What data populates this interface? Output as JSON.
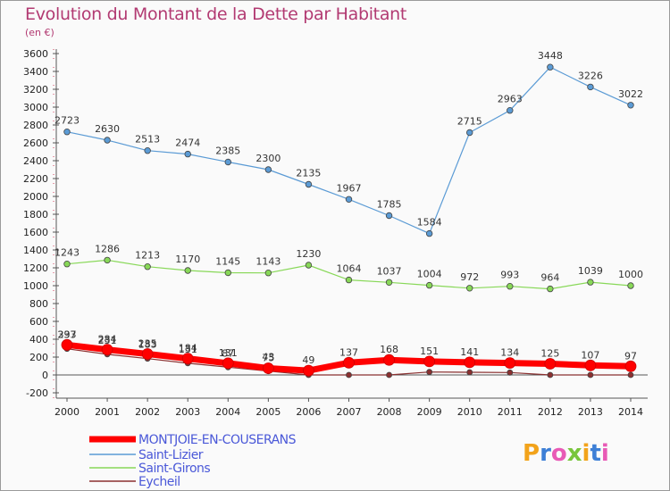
{
  "title": "Evolution du Montant de la Dette par Habitant",
  "unit": "(en €)",
  "logo": "Proxiti",
  "chart_data": {
    "type": "line",
    "title": "Evolution du Montant de la Dette par Habitant",
    "subtitle": "(en €)",
    "x": [
      "2000",
      "2001",
      "2002",
      "2003",
      "2004",
      "2005",
      "2006",
      "2007",
      "2008",
      "2009",
      "2010",
      "2011",
      "2012",
      "2013",
      "2014"
    ],
    "y_ticks": [
      "-200",
      "0",
      "200",
      "400",
      "600",
      "800",
      "1000",
      "1200",
      "1400",
      "1600",
      "1800",
      "2000",
      "2200",
      "2400",
      "2600",
      "2800",
      "3000",
      "3200",
      "3400",
      "3600"
    ],
    "ylim": [
      -200,
      3600
    ],
    "grid": false,
    "legend_position": "bottom-left",
    "series": [
      {
        "name": "MONTJOIE-EN-COUSERANS",
        "color": "#ff0000",
        "values": [
          337,
          284,
          235,
          184,
          131,
          75,
          49,
          137,
          168,
          151,
          141,
          134,
          125,
          107,
          97
        ],
        "labels": [
          "337",
          "284",
          "235",
          "184",
          "131",
          "75",
          "49",
          "137",
          "168",
          "151",
          "141",
          "134",
          "125",
          "107",
          "97"
        ]
      },
      {
        "name": "Saint-Lizier",
        "color": "#5b9bd5",
        "values": [
          2723,
          2630,
          2513,
          2474,
          2385,
          2300,
          2135,
          1967,
          1785,
          1584,
          2715,
          2963,
          3448,
          3226,
          3022
        ],
        "labels": [
          "2723",
          "2630",
          "2513",
          "2474",
          "2385",
          "2300",
          "2135",
          "1967",
          "1785",
          "1584",
          "2715",
          "2963",
          "3448",
          "3226",
          "3022"
        ]
      },
      {
        "name": "Saint-Girons",
        "color": "#88d858",
        "values": [
          1243,
          1286,
          1213,
          1170,
          1145,
          1143,
          1230,
          1064,
          1037,
          1004,
          972,
          993,
          964,
          1039,
          1000
        ],
        "labels": [
          "1243",
          "1286",
          "1213",
          "1170",
          "1145",
          "1143",
          "1230",
          "1064",
          "1037",
          "1004",
          "972",
          "993",
          "964",
          "1039",
          "1000"
        ]
      },
      {
        "name": "Eycheil",
        "color": "#8b3030",
        "values": [
          293,
          231,
          183,
          131,
          87,
          43,
          0,
          0,
          0,
          33,
          30,
          27,
          0,
          0,
          0
        ],
        "labels": [
          "293",
          "231",
          "183",
          "131",
          "87",
          "43",
          "",
          "",
          "",
          "",
          "",
          "",
          "",
          "",
          ""
        ]
      }
    ]
  }
}
